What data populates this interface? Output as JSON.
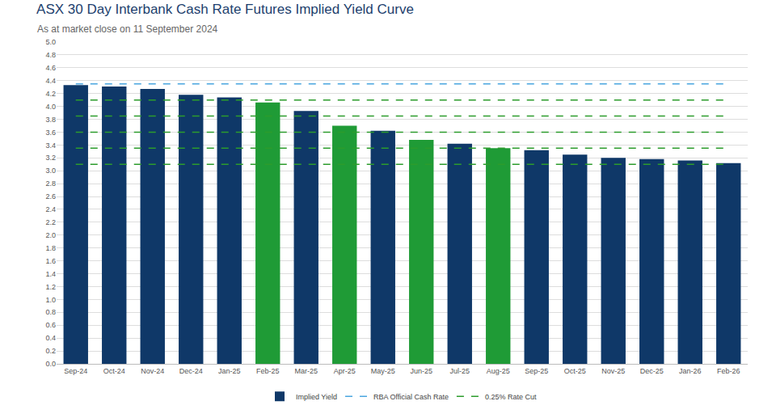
{
  "chart_data": {
    "type": "bar",
    "title": "ASX 30 Day Interbank Cash Rate Futures Implied Yield Curve",
    "subtitle": "As at market close on 11 September 2024",
    "categories": [
      "Sep-24",
      "Oct-24",
      "Nov-24",
      "Dec-24",
      "Jan-25",
      "Feb-25",
      "Mar-25",
      "Apr-25",
      "May-25",
      "Jun-25",
      "Jul-25",
      "Aug-25",
      "Sep-25",
      "Oct-25",
      "Nov-25",
      "Dec-25",
      "Jan-26",
      "Feb-26"
    ],
    "series": [
      {
        "name": "Implied Yield",
        "type": "bar",
        "colors": [
          "#0f3868",
          "#0f3868",
          "#0f3868",
          "#0f3868",
          "#0f3868",
          "#1f9b36",
          "#0f3868",
          "#1f9b36",
          "#0f3868",
          "#1f9b36",
          "#0f3868",
          "#1f9b36",
          "#0f3868",
          "#0f3868",
          "#0f3868",
          "#0f3868",
          "#0f3868",
          "#0f3868"
        ],
        "values": [
          4.33,
          4.31,
          4.27,
          4.18,
          4.14,
          4.06,
          3.93,
          3.7,
          3.62,
          3.48,
          3.42,
          3.35,
          3.32,
          3.25,
          3.2,
          3.18,
          3.16,
          3.12
        ]
      }
    ],
    "reference_lines": [
      {
        "name": "RBA Official Cash Rate",
        "color": "#4aa6e0",
        "line_style": "dashed",
        "values": [
          4.35
        ]
      },
      {
        "name": "0.25% Rate Cut",
        "color": "#2c9c2c",
        "line_style": "dashed",
        "values": [
          4.1,
          3.85,
          3.6,
          3.35,
          3.1
        ]
      }
    ],
    "ylim": [
      0,
      5
    ],
    "yticks": [
      {
        "value": 0,
        "label": "0.0"
      },
      0.2,
      0.4,
      0.6,
      0.8,
      {
        "value": 1,
        "label": "1.0"
      },
      1.2,
      1.4,
      1.6,
      1.8,
      {
        "value": 2,
        "label": "2.0"
      },
      2.2,
      2.4,
      2.6,
      2.8,
      {
        "value": 3,
        "label": "3.0"
      },
      3.2,
      3.4,
      3.6,
      3.8,
      {
        "value": 4,
        "label": "4.0"
      },
      4.2,
      4.4,
      4.6,
      4.8,
      {
        "value": 5,
        "label": "5.0"
      }
    ],
    "grid": true,
    "legend": "bottom"
  }
}
